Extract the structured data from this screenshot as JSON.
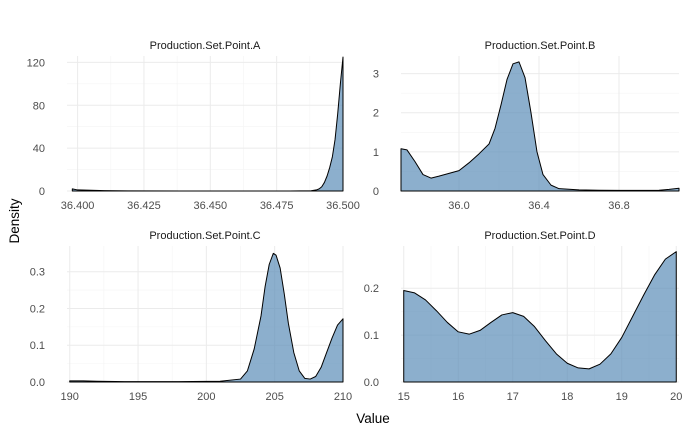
{
  "axis": {
    "xlabel": "Value",
    "ylabel": "Density"
  },
  "chart_data": [
    {
      "type": "area",
      "title": "Production.Set.Point.A",
      "xlim": [
        36.396,
        36.5
      ],
      "ylim": [
        0,
        126
      ],
      "xticks": [
        36.4,
        36.425,
        36.45,
        36.475,
        36.5
      ],
      "xtick_labels": [
        "36.400",
        "36.425",
        "36.450",
        "36.475",
        "36.500"
      ],
      "yticks": [
        0,
        40,
        80,
        120
      ],
      "ytick_labels": [
        "0",
        "40",
        "80",
        "120"
      ],
      "x": [
        36.398,
        36.4,
        36.41,
        36.42,
        36.44,
        36.46,
        36.48,
        36.488,
        36.49,
        36.491,
        36.492,
        36.493,
        36.494,
        36.495,
        36.496,
        36.497,
        36.498,
        36.499,
        36.5
      ],
      "y": [
        2,
        1,
        0.3,
        0.1,
        0,
        0,
        0,
        0.2,
        1,
        2,
        4,
        8,
        14,
        22,
        32,
        48,
        72,
        100,
        125
      ]
    },
    {
      "type": "area",
      "title": "Production.Set.Point.B",
      "xlim": [
        35.71,
        37.1
      ],
      "ylim": [
        0,
        3.45
      ],
      "xticks": [
        36.0,
        36.4,
        36.8
      ],
      "xtick_labels": [
        "36.0",
        "36.4",
        "36.8"
      ],
      "yticks": [
        0,
        1,
        2,
        3
      ],
      "ytick_labels": [
        "0",
        "1",
        "2",
        "3"
      ],
      "x": [
        35.71,
        35.74,
        35.78,
        35.82,
        35.86,
        35.9,
        35.95,
        36.0,
        36.05,
        36.1,
        36.15,
        36.18,
        36.21,
        36.24,
        36.27,
        36.3,
        36.33,
        36.36,
        36.39,
        36.42,
        36.46,
        36.5,
        36.6,
        36.7,
        36.8,
        36.9,
        37.0,
        37.05,
        37.1
      ],
      "y": [
        1.08,
        1.05,
        0.75,
        0.42,
        0.33,
        0.38,
        0.45,
        0.52,
        0.72,
        0.95,
        1.2,
        1.6,
        2.2,
        2.85,
        3.25,
        3.3,
        2.9,
        2.0,
        1.0,
        0.42,
        0.15,
        0.06,
        0.03,
        0.02,
        0.015,
        0.015,
        0.02,
        0.04,
        0.07
      ]
    },
    {
      "type": "area",
      "title": "Production.Set.Point.C",
      "xlim": [
        189.8,
        210
      ],
      "ylim": [
        0,
        0.37
      ],
      "xticks": [
        190,
        195,
        200,
        205,
        210
      ],
      "xtick_labels": [
        "190",
        "195",
        "200",
        "205",
        "210"
      ],
      "yticks": [
        0,
        0.1,
        0.2,
        0.3
      ],
      "ytick_labels": [
        "0.0",
        "0.1",
        "0.2",
        "0.3"
      ],
      "x": [
        190,
        191,
        192,
        194,
        198,
        201,
        202.5,
        203,
        203.5,
        204,
        204.3,
        204.6,
        204.9,
        205.1,
        205.4,
        205.7,
        206,
        206.4,
        206.8,
        207.2,
        207.6,
        208,
        208.4,
        208.8,
        209.2,
        209.6,
        210
      ],
      "y": [
        0.003,
        0.003,
        0.002,
        0.001,
        0.001,
        0.002,
        0.008,
        0.03,
        0.09,
        0.18,
        0.26,
        0.32,
        0.35,
        0.345,
        0.31,
        0.24,
        0.16,
        0.08,
        0.03,
        0.01,
        0.008,
        0.015,
        0.04,
        0.08,
        0.12,
        0.155,
        0.172
      ]
    },
    {
      "type": "area",
      "title": "Production.Set.Point.D",
      "xlim": [
        14.95,
        20.05
      ],
      "ylim": [
        0,
        0.29
      ],
      "xticks": [
        15,
        16,
        17,
        18,
        19,
        20
      ],
      "xtick_labels": [
        "15",
        "16",
        "17",
        "18",
        "19",
        "20"
      ],
      "yticks": [
        0,
        0.1,
        0.2
      ],
      "ytick_labels": [
        "0.0",
        "0.1",
        "0.2"
      ],
      "x": [
        15.0,
        15.2,
        15.4,
        15.6,
        15.8,
        16.0,
        16.2,
        16.4,
        16.6,
        16.8,
        17.0,
        17.2,
        17.4,
        17.6,
        17.8,
        18.0,
        18.2,
        18.4,
        18.6,
        18.8,
        19.0,
        19.2,
        19.4,
        19.6,
        19.8,
        20.0
      ],
      "y": [
        0.195,
        0.19,
        0.175,
        0.152,
        0.127,
        0.107,
        0.102,
        0.11,
        0.127,
        0.143,
        0.148,
        0.14,
        0.118,
        0.088,
        0.06,
        0.04,
        0.03,
        0.028,
        0.038,
        0.06,
        0.095,
        0.14,
        0.185,
        0.228,
        0.262,
        0.278
      ]
    }
  ]
}
